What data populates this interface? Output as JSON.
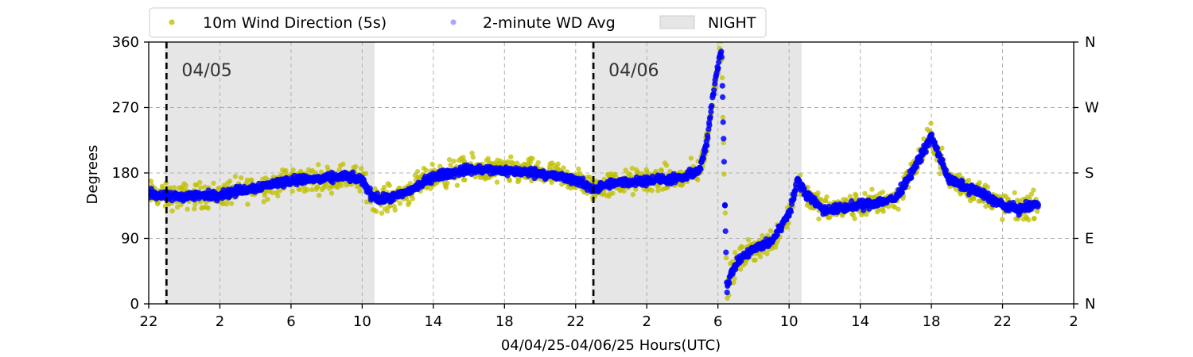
{
  "chart_data": {
    "type": "scatter",
    "title": "",
    "xlabel": "04/04/25-04/06/25  Hours(UTC)",
    "ylabel": "Degrees",
    "x_unit": "hours (UTC)",
    "xlim": [
      22,
      74
    ],
    "ylim": [
      0,
      360
    ],
    "x_ticks": [
      22,
      26,
      30,
      34,
      38,
      42,
      46,
      50,
      54,
      58,
      62,
      66,
      70,
      74
    ],
    "x_tick_labels": [
      "22",
      "2",
      "6",
      "10",
      "14",
      "18",
      "22",
      "2",
      "6",
      "10",
      "14",
      "18",
      "22",
      "2"
    ],
    "y_ticks": [
      0,
      90,
      180,
      270,
      360
    ],
    "y_tick_labels": [
      "0",
      "90",
      "180",
      "270",
      "360"
    ],
    "y2_tick_labels": [
      "N",
      "E",
      "S",
      "W",
      "N"
    ],
    "grid": true,
    "legend_position": "top",
    "day_markers": [
      {
        "x": 23,
        "label": "04/05"
      },
      {
        "x": 47,
        "label": "04/06"
      }
    ],
    "night_shading": [
      {
        "x0": 22.9,
        "x1": 34.7
      },
      {
        "x0": 46.9,
        "x1": 58.7
      }
    ],
    "legend": [
      {
        "label": "10m Wind Direction (5s)",
        "marker": "circle",
        "color": "#bfbf00"
      },
      {
        "label": "2-minute WD Avg",
        "marker": "circle",
        "color": "#0000ff"
      },
      {
        "label": "NIGHT",
        "marker": "patch",
        "color": "#e6e6e6"
      }
    ],
    "series": [
      {
        "name": "10m Wind Direction (5s)",
        "color": "#bfbf00",
        "spread": 26,
        "x": [
          22,
          23,
          24,
          26,
          28,
          30,
          32,
          33,
          34,
          34.5,
          35,
          36,
          37,
          38,
          40,
          42,
          44,
          46,
          47,
          48,
          50,
          52,
          53,
          53.4,
          53.8,
          54.2,
          54.5,
          54.8,
          55.2,
          56,
          57,
          57.5,
          58,
          58.5,
          59,
          60,
          61,
          62,
          63,
          64,
          65,
          66,
          67,
          68,
          69,
          70,
          71,
          72
        ],
        "y": [
          152,
          147,
          148,
          150,
          160,
          170,
          172,
          176,
          170,
          150,
          143,
          148,
          160,
          175,
          185,
          183,
          180,
          170,
          158,
          165,
          170,
          172,
          185,
          225,
          300,
          355,
          20,
          45,
          60,
          75,
          85,
          105,
          125,
          170,
          150,
          128,
          132,
          135,
          140,
          145,
          185,
          230,
          170,
          160,
          150,
          135,
          130,
          138
        ]
      },
      {
        "name": "2-minute WD Avg",
        "color": "#0000ff",
        "spread": 9,
        "x": [
          22,
          23,
          24,
          26,
          28,
          30,
          32,
          33,
          34,
          34.5,
          35,
          36,
          37,
          38,
          40,
          42,
          44,
          46,
          47,
          48,
          50,
          52,
          53,
          53.4,
          53.8,
          54.2,
          54.5,
          54.8,
          55.2,
          56,
          57,
          57.5,
          58,
          58.5,
          59,
          60,
          61,
          62,
          63,
          64,
          65,
          66,
          67,
          68,
          69,
          70,
          71,
          72
        ],
        "y": [
          152,
          147,
          148,
          150,
          160,
          170,
          172,
          176,
          170,
          150,
          143,
          148,
          160,
          175,
          185,
          183,
          180,
          170,
          158,
          165,
          170,
          172,
          185,
          225,
          300,
          355,
          20,
          45,
          60,
          75,
          85,
          105,
          125,
          170,
          150,
          128,
          132,
          135,
          140,
          145,
          185,
          230,
          170,
          160,
          150,
          135,
          130,
          138
        ]
      }
    ]
  }
}
